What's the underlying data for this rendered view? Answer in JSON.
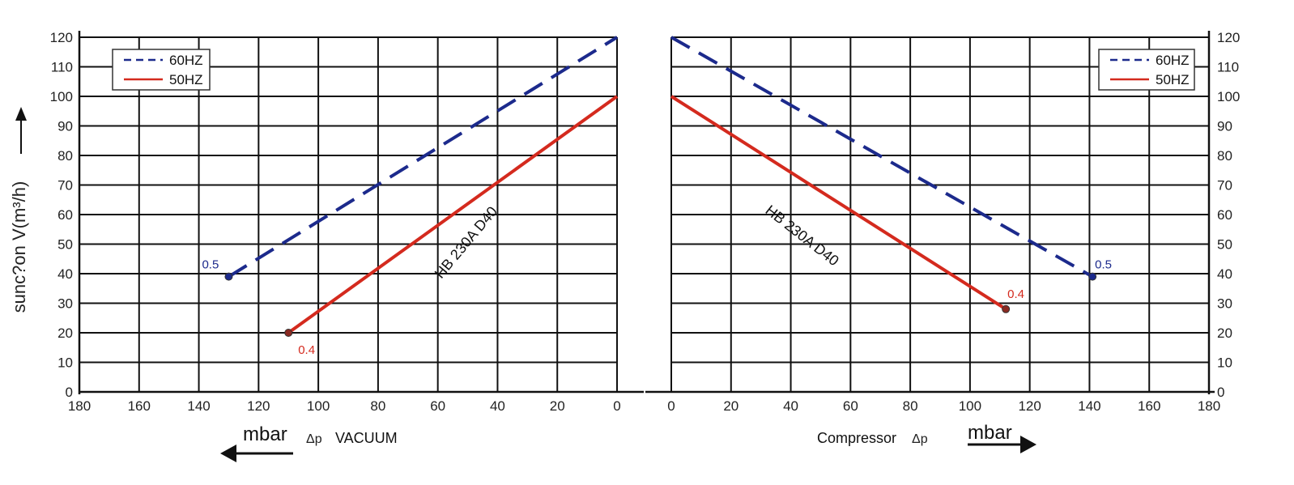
{
  "chart_data": [
    {
      "type": "line",
      "panel": "left",
      "xlabel": "VACUUM",
      "delta_p": "Δp",
      "unit": "mbar",
      "ylabel": "sunc?on V(m³/h)",
      "xlim": [
        180,
        0
      ],
      "ylim": [
        0,
        120
      ],
      "x_ticks": [
        180,
        160,
        140,
        120,
        100,
        80,
        60,
        40,
        20,
        0
      ],
      "y_ticks": [
        0,
        10,
        20,
        30,
        40,
        50,
        60,
        70,
        80,
        90,
        100,
        110,
        120
      ],
      "legend_position": "top-left",
      "curve_label": "HB 230A D40",
      "series": [
        {
          "name": "60HZ",
          "style": "dashed",
          "color": "#1c2a8c",
          "x": [
            130,
            0
          ],
          "y": [
            39,
            120
          ],
          "end_label": "0.5"
        },
        {
          "name": "50HZ",
          "style": "solid",
          "color": "#d42a1e",
          "x": [
            110,
            0
          ],
          "y": [
            20,
            100
          ],
          "end_label": "0.4"
        }
      ]
    },
    {
      "type": "line",
      "panel": "right",
      "xlabel": "Compressor",
      "delta_p": "Δp",
      "unit": "mbar",
      "xlim": [
        0,
        180
      ],
      "ylim": [
        0,
        120
      ],
      "x_ticks": [
        0,
        20,
        40,
        60,
        80,
        100,
        120,
        140,
        160,
        180
      ],
      "y_ticks": [
        0,
        10,
        20,
        30,
        40,
        50,
        60,
        70,
        80,
        90,
        100,
        110,
        120
      ],
      "legend_position": "top-right",
      "curve_label": "HB 230A D40",
      "series": [
        {
          "name": "60HZ",
          "style": "dashed",
          "color": "#1c2a8c",
          "x": [
            0,
            141
          ],
          "y": [
            120,
            39
          ],
          "end_label": "0.5"
        },
        {
          "name": "50HZ",
          "style": "solid",
          "color": "#d42a1e",
          "x": [
            0,
            112
          ],
          "y": [
            100,
            28
          ],
          "end_label": "0.4"
        }
      ]
    }
  ],
  "colors": {
    "grid": "#111111",
    "blue": "#1c2a8c",
    "red": "#d42a1e",
    "text": "#222222"
  }
}
